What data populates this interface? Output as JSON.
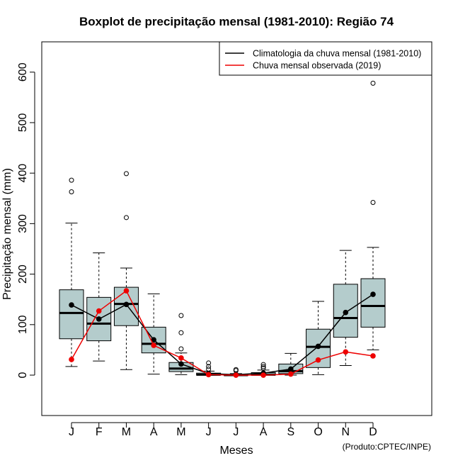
{
  "chart_data": {
    "type": "boxplot",
    "title": "Boxplot de precipitação mensal (1981-2010): Região 74",
    "xlabel": "Meses",
    "ylabel": "Precipitação mensal (mm)",
    "ylim": [
      -80,
      660
    ],
    "yticks": [
      0,
      100,
      200,
      300,
      400,
      500,
      600
    ],
    "categories": [
      "J",
      "F",
      "M",
      "A",
      "M",
      "J",
      "J",
      "A",
      "S",
      "O",
      "N",
      "D"
    ],
    "boxes": [
      {
        "whisker_low": 17,
        "q1": 72,
        "median": 123,
        "q3": 169,
        "whisker_high": 301,
        "outliers": [
          363,
          386
        ]
      },
      {
        "whisker_low": 28,
        "q1": 68,
        "median": 102,
        "q3": 154,
        "whisker_high": 242,
        "outliers": []
      },
      {
        "whisker_low": 11,
        "q1": 98,
        "median": 141,
        "q3": 174,
        "whisker_high": 212,
        "outliers": [
          312,
          399
        ]
      },
      {
        "whisker_low": 2,
        "q1": 44,
        "median": 62,
        "q3": 95,
        "whisker_high": 161,
        "outliers": []
      },
      {
        "whisker_low": 1,
        "q1": 7,
        "median": 13,
        "q3": 25,
        "whisker_high": 44,
        "outliers": [
          52,
          84,
          118
        ]
      },
      {
        "whisker_low": 0,
        "q1": 0,
        "median": 1,
        "q3": 4,
        "whisker_high": 8,
        "outliers": [
          12,
          17,
          24
        ]
      },
      {
        "whisker_low": 0,
        "q1": 0,
        "median": 0,
        "q3": 1,
        "whisker_high": 3,
        "outliers": [
          9,
          11
        ]
      },
      {
        "whisker_low": 0,
        "q1": 0,
        "median": 1,
        "q3": 5,
        "whisker_high": 10,
        "outliers": [
          14,
          17,
          21
        ]
      },
      {
        "whisker_low": 0,
        "q1": 3,
        "median": 8,
        "q3": 22,
        "whisker_high": 43,
        "outliers": []
      },
      {
        "whisker_low": 1,
        "q1": 15,
        "median": 56,
        "q3": 91,
        "whisker_high": 146,
        "outliers": []
      },
      {
        "whisker_low": 19,
        "q1": 75,
        "median": 113,
        "q3": 180,
        "whisker_high": 247,
        "outliers": []
      },
      {
        "whisker_low": 50,
        "q1": 95,
        "median": 137,
        "q3": 191,
        "whisker_high": 253,
        "outliers": [
          342,
          578
        ]
      }
    ],
    "series": [
      {
        "name": "Climatologia da chuva mensal (1981-2010)",
        "color": "#000000",
        "values": [
          139,
          111,
          140,
          70,
          22,
          3,
          1,
          4,
          12,
          57,
          124,
          160
        ]
      },
      {
        "name": "Chuva mensal observada (2019)",
        "color": "#ee0000",
        "values": [
          31,
          127,
          167,
          59,
          34,
          1,
          0,
          0,
          2,
          30,
          46,
          38
        ]
      }
    ],
    "box_fill": "#b4cccc",
    "legend_position": "top-right",
    "annotation": "(Produto:CPTEC/INPE)"
  }
}
